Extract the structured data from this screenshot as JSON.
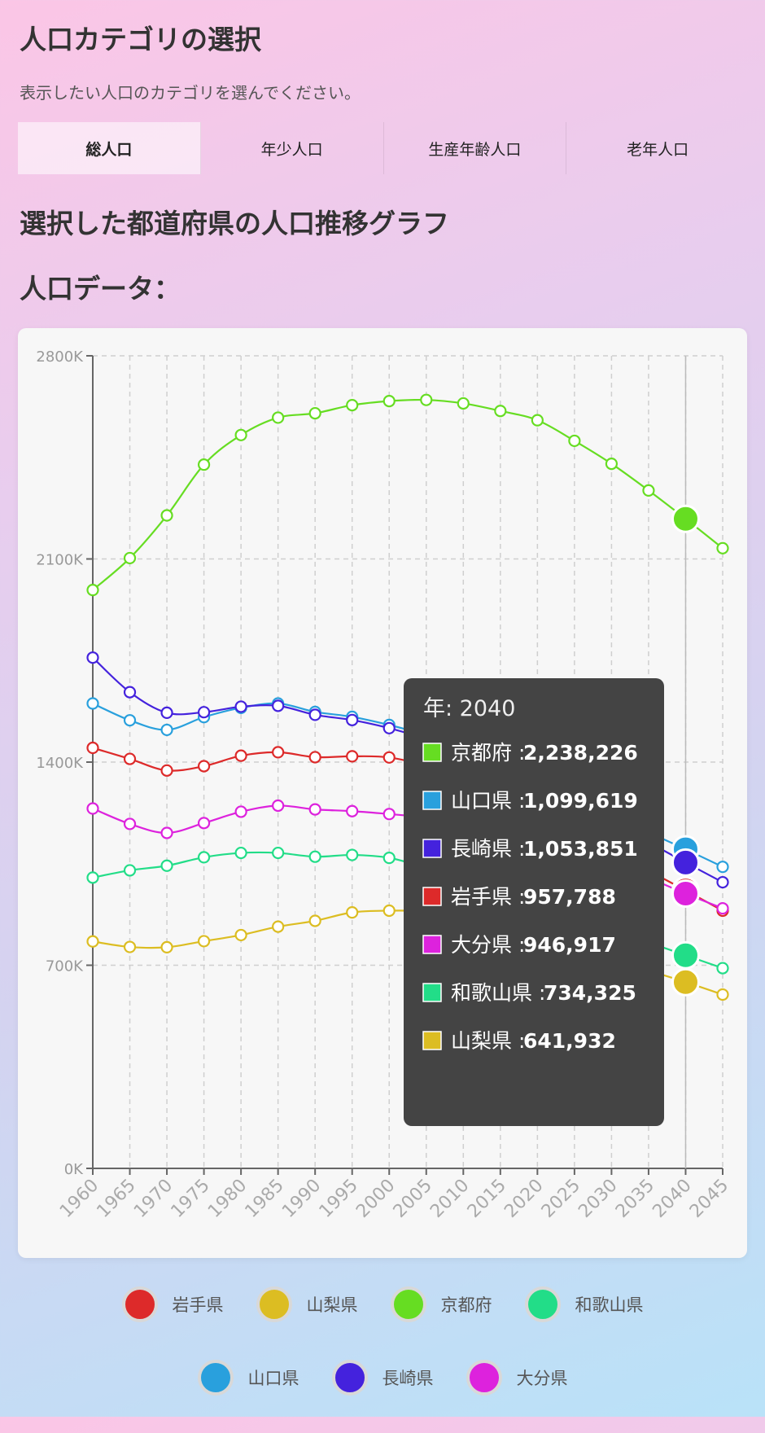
{
  "header": {
    "title": "人口カテゴリの選択",
    "description": "表示したい人口のカテゴリを選んでください。"
  },
  "tabs": [
    {
      "label": "総人口",
      "active": true
    },
    {
      "label": "年少人口",
      "active": false
    },
    {
      "label": "生産年齢人口",
      "active": false
    },
    {
      "label": "老年人口",
      "active": false
    }
  ],
  "section": {
    "graph_title": "選択した都道府県の人口推移グラフ",
    "data_title": "人口データ："
  },
  "colors": {
    "iwate": "#dd2a2a",
    "yamanashi": "#dcbd22",
    "kyoto": "#66dd22",
    "wakayama": "#22dd88",
    "yamaguchi": "#29a0dd",
    "nagasaki": "#4422dd",
    "oita": "#dd22dd"
  },
  "chart_data": {
    "type": "line",
    "x": [
      1960,
      1965,
      1970,
      1975,
      1980,
      1985,
      1990,
      1995,
      2000,
      2005,
      2010,
      2015,
      2020,
      2025,
      2030,
      2035,
      2040,
      2045
    ],
    "xlabel": "",
    "ylabel": "",
    "ylim": [
      0,
      2800000
    ],
    "yticks": [
      "0K",
      "700K",
      "1400K",
      "2100K",
      "2800K"
    ],
    "grid": true,
    "series": [
      {
        "name": "京都府",
        "color_key": "kyoto",
        "values": [
          1993000,
          2103000,
          2250000,
          2425000,
          2527000,
          2587000,
          2602000,
          2630000,
          2644000,
          2648000,
          2636000,
          2610000,
          2578000,
          2507000,
          2428000,
          2336000,
          2238226,
          2137000
        ]
      },
      {
        "name": "山口県",
        "color_key": "yamaguchi",
        "values": [
          1602000,
          1544000,
          1511000,
          1555000,
          1587000,
          1602000,
          1573000,
          1556000,
          1528000,
          1493000,
          1451000,
          1405000,
          1342000,
          1281000,
          1215000,
          1158000,
          1099619,
          1039000
        ]
      },
      {
        "name": "長崎県",
        "color_key": "nagasaki",
        "values": [
          1760000,
          1641000,
          1570000,
          1572000,
          1591000,
          1594000,
          1563000,
          1545000,
          1517000,
          1479000,
          1427000,
          1377000,
          1312000,
          1253000,
          1192000,
          1124000,
          1053851,
          986000
        ]
      },
      {
        "name": "岩手県",
        "color_key": "iwate",
        "values": [
          1449000,
          1411000,
          1371000,
          1386000,
          1422000,
          1434000,
          1417000,
          1420000,
          1416000,
          1385000,
          1330000,
          1280000,
          1211000,
          1158000,
          1096000,
          1026000,
          957788,
          888000
        ]
      },
      {
        "name": "大分県",
        "color_key": "oita",
        "values": [
          1240000,
          1187000,
          1156000,
          1190000,
          1229000,
          1250000,
          1237000,
          1231000,
          1221000,
          1210000,
          1197000,
          1166000,
          1124000,
          1085000,
          1049000,
          1001000,
          946917,
          896000
        ]
      },
      {
        "name": "和歌山県",
        "color_key": "wakayama",
        "values": [
          1002000,
          1027000,
          1043000,
          1072000,
          1087000,
          1087000,
          1074000,
          1080000,
          1070000,
          1036000,
          1002000,
          964000,
          923000,
          879000,
          829000,
          779000,
          734325,
          690000
        ]
      },
      {
        "name": "山梨県",
        "color_key": "yamanashi",
        "values": [
          782000,
          763000,
          762000,
          783000,
          804000,
          833000,
          853000,
          882000,
          888000,
          885000,
          863000,
          835000,
          810000,
          767000,
          722000,
          682000,
          641932,
          599000
        ]
      }
    ],
    "highlight_index": 16,
    "tooltip": {
      "title": "年: 2040",
      "rows": [
        {
          "label": "京都府",
          "value": "2,238,226",
          "color_key": "kyoto"
        },
        {
          "label": "山口県",
          "value": "1,099,619",
          "color_key": "yamaguchi"
        },
        {
          "label": "長崎県",
          "value": "1,053,851",
          "color_key": "nagasaki"
        },
        {
          "label": "岩手県",
          "value": "957,788",
          "color_key": "iwate"
        },
        {
          "label": "大分県",
          "value": "946,917",
          "color_key": "oita"
        },
        {
          "label": "和歌山県",
          "value": "734,325",
          "color_key": "wakayama"
        },
        {
          "label": "山梨県",
          "value": "641,932",
          "color_key": "yamanashi"
        }
      ]
    }
  },
  "legend": {
    "rows": [
      [
        {
          "label": "岩手県",
          "color_key": "iwate"
        },
        {
          "label": "山梨県",
          "color_key": "yamanashi"
        },
        {
          "label": "京都府",
          "color_key": "kyoto"
        },
        {
          "label": "和歌山県",
          "color_key": "wakayama"
        }
      ],
      [
        {
          "label": "山口県",
          "color_key": "yamaguchi"
        },
        {
          "label": "長崎県",
          "color_key": "nagasaki"
        },
        {
          "label": "大分県",
          "color_key": "oita"
        }
      ]
    ]
  }
}
